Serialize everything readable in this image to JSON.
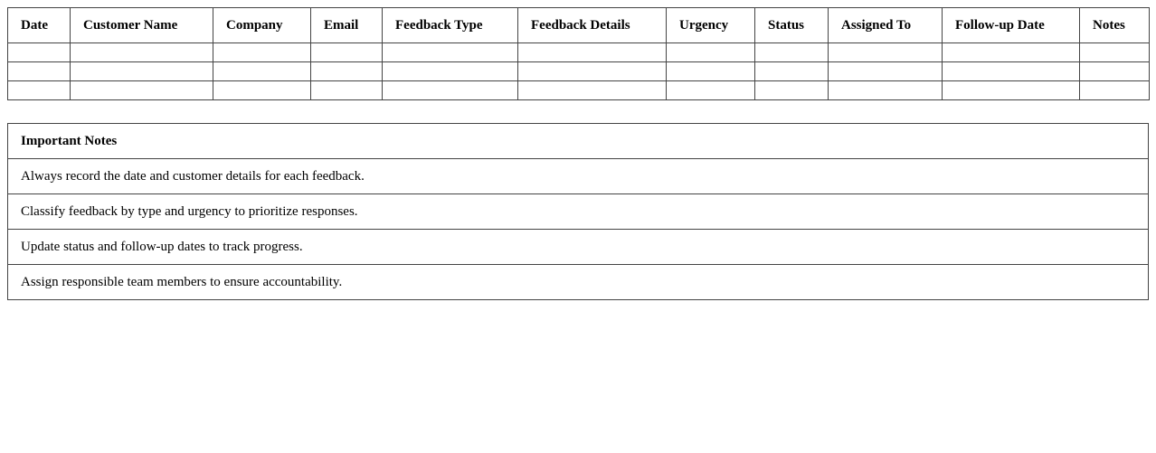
{
  "table": {
    "headers": [
      "Date",
      "Customer Name",
      "Company",
      "Email",
      "Feedback Type",
      "Feedback Details",
      "Urgency",
      "Status",
      "Assigned To",
      "Follow-up Date",
      "Notes"
    ],
    "empty_rows": 3
  },
  "notes": {
    "title": "Important Notes",
    "items": [
      "Always record the date and customer details for each feedback.",
      "Classify feedback by type and urgency to prioritize responses.",
      "Update status and follow-up dates to track progress.",
      "Assign responsible team members to ensure accountability."
    ]
  }
}
